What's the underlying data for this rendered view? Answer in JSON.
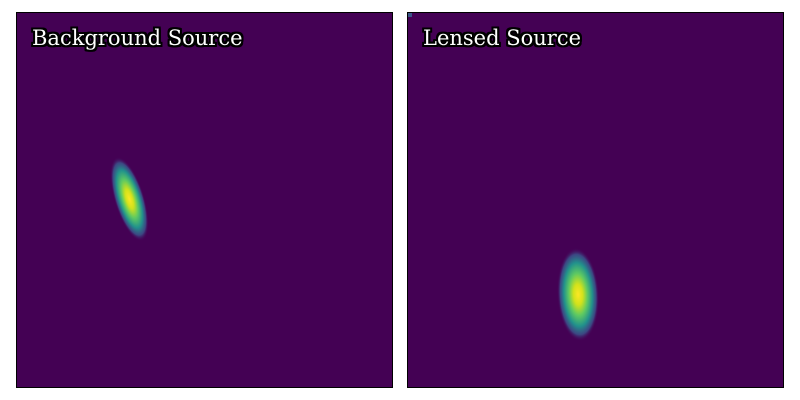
{
  "colormap": {
    "name": "viridis",
    "background": "#440154",
    "stops": [
      "#440154",
      "#3b528b",
      "#21918c",
      "#5ec962",
      "#fde725"
    ]
  },
  "panels": [
    {
      "title": "Background Source"
    },
    {
      "title": "Lensed Source"
    }
  ]
}
